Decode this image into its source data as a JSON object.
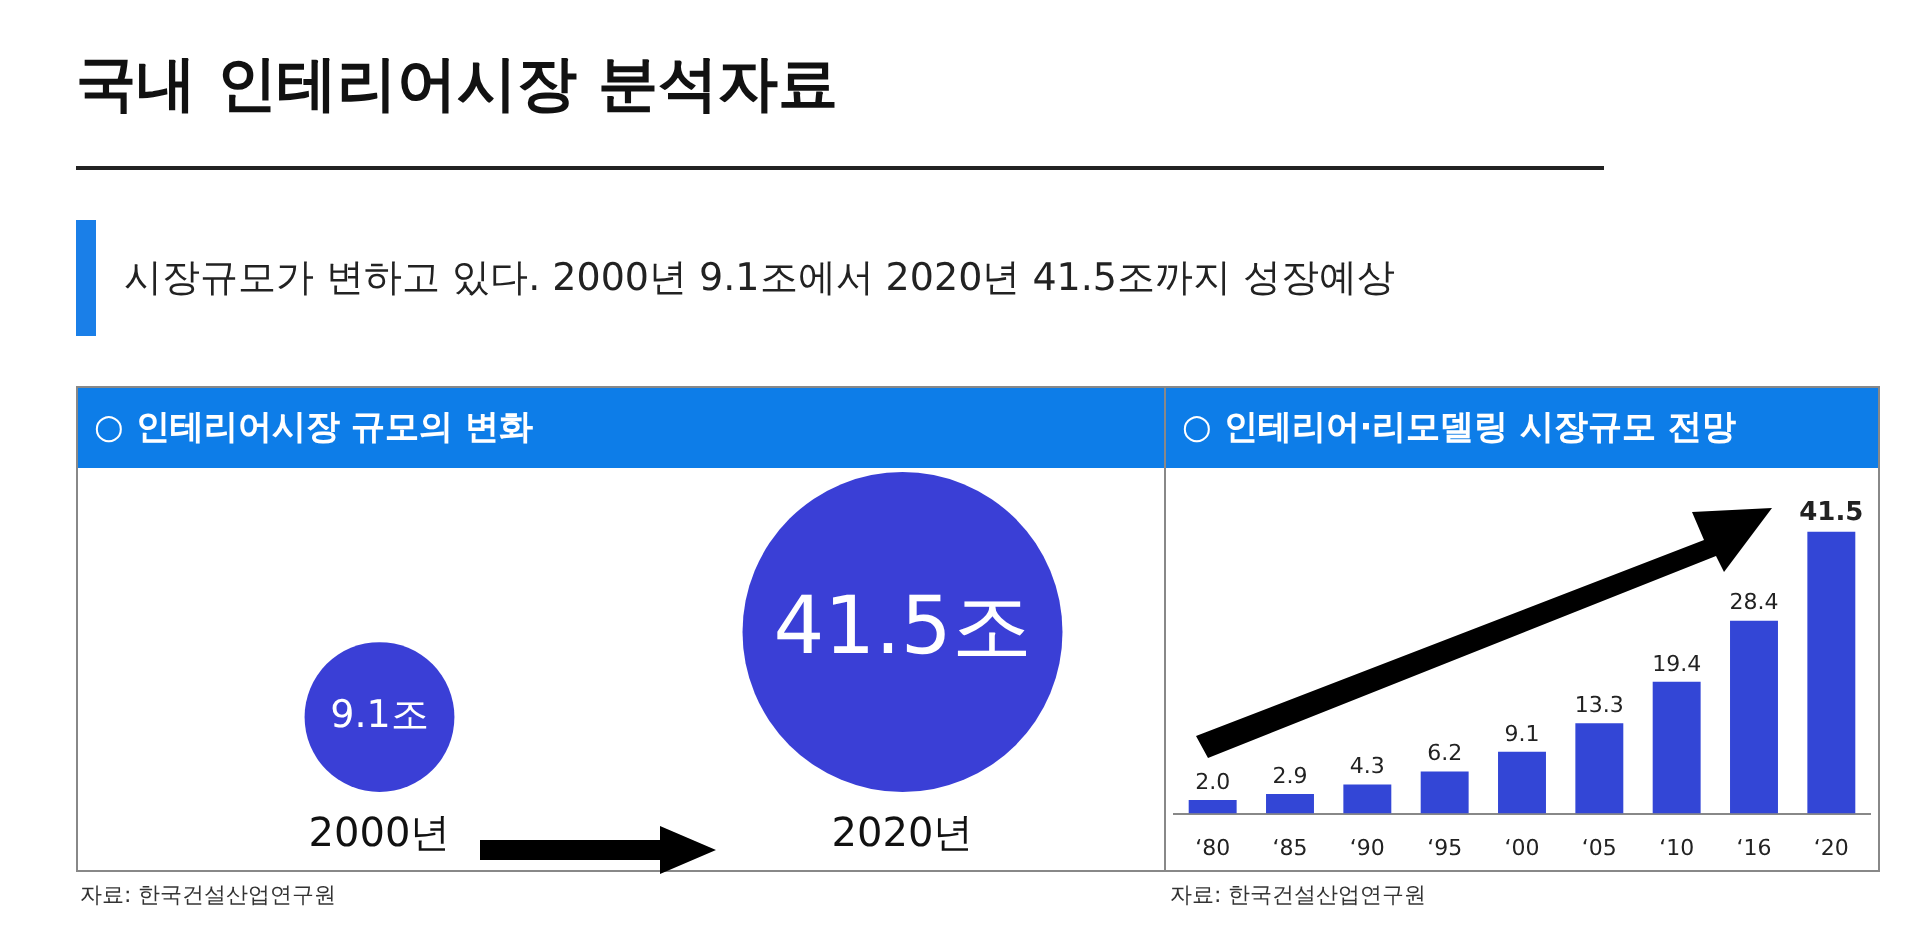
{
  "chart_data": [
    {
      "type": "other",
      "title": "○ 인테리어시장 규모의 변화",
      "annotations": [
        "국내 인테리어시장 분석자료",
        "시장규모가 변하고 있다. 2000년 9.1조에서 2020년 41.5조까지 성장예상",
        "자료: 한국건설산업연구원"
      ],
      "categories": [
        "2000년",
        "2020년"
      ],
      "values": [
        9.1,
        41.5
      ],
      "value_labels": [
        "9.1조",
        "41.5조"
      ],
      "color": "#3a3fd6"
    },
    {
      "type": "bar",
      "title": "○ 인테리어·리모델링 시장규모 전망",
      "annotations": [
        "자료: 한국건설산업연구원"
      ],
      "categories": [
        "‘80",
        "‘85",
        "‘90",
        "‘95",
        "‘00",
        "‘05",
        "‘10",
        "‘16",
        "‘20"
      ],
      "values": [
        2.0,
        2.9,
        4.3,
        6.2,
        9.1,
        13.3,
        19.4,
        28.4,
        41.5
      ],
      "color": "#3346d6",
      "value_labels": [
        "2.0",
        "2.9",
        "4.3",
        "6.2",
        "9.1",
        "13.3",
        "19.4",
        "28.4",
        "41.5"
      ],
      "legend": false
    }
  ]
}
